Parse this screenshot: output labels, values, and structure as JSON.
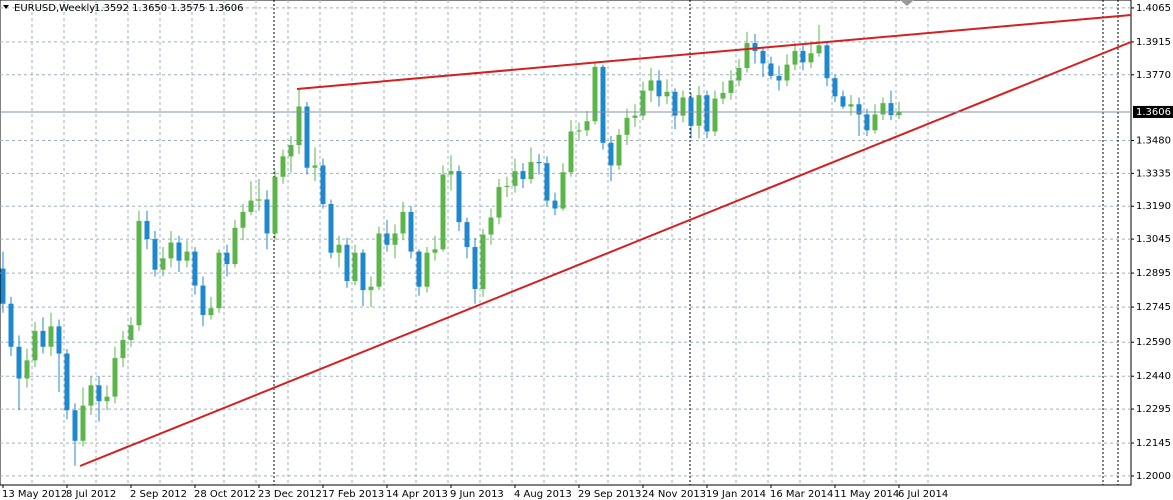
{
  "chart_data": {
    "type": "candlestick",
    "title": "EURUSD,Weekly",
    "header_ohlc": "1.3592 1.3650 1.3575 1.3606",
    "categories": [
      "13 May 2012",
      null,
      null,
      null,
      null,
      null,
      null,
      null,
      "8 Jul 2012",
      null,
      null,
      null,
      null,
      null,
      null,
      null,
      "2 Sep 2012",
      null,
      null,
      null,
      null,
      null,
      null,
      null,
      "28 Oct 2012",
      null,
      null,
      null,
      null,
      null,
      null,
      null,
      "23 Dec 2012",
      null,
      null,
      null,
      null,
      null,
      null,
      null,
      "17 Feb 2013",
      null,
      null,
      null,
      null,
      null,
      null,
      null,
      "14 Apr 2013",
      null,
      null,
      null,
      null,
      null,
      null,
      null,
      "9 Jun 2013",
      null,
      null,
      null,
      null,
      null,
      null,
      null,
      "4 Aug 2013",
      null,
      null,
      null,
      null,
      null,
      null,
      null,
      "29 Sep 2013",
      null,
      null,
      null,
      null,
      null,
      null,
      null,
      "24 Nov 2013",
      null,
      null,
      null,
      null,
      null,
      null,
      null,
      "19 Jan 2014",
      null,
      null,
      null,
      null,
      null,
      null,
      null,
      "16 Mar 2014",
      null,
      null,
      null,
      null,
      null,
      null,
      null,
      "11 May 2014",
      null,
      null,
      null,
      null,
      null,
      null,
      null,
      "6 Jul 2014"
    ],
    "open": [
      1.2915,
      1.276,
      1.257,
      1.243,
      1.251,
      1.264,
      1.257,
      1.266,
      1.254,
      1.229,
      1.2155,
      1.231,
      1.24,
      1.233,
      1.235,
      1.252,
      1.26,
      1.2665,
      1.3125,
      1.3045,
      1.291,
      1.296,
      1.303,
      1.295,
      1.299,
      1.284,
      1.271,
      1.274,
      1.2985,
      1.2935,
      1.3095,
      1.3165,
      1.3215,
      1.322,
      1.307,
      1.332,
      1.341,
      1.346,
      1.363,
      1.336,
      1.337,
      1.32,
      1.2985,
      1.302,
      1.286,
      1.2985,
      1.282,
      1.2835,
      1.307,
      1.302,
      1.307,
      1.3165,
      1.299,
      1.2835,
      1.2985,
      1.3,
      1.333,
      1.3345,
      1.312,
      1.301,
      1.2825,
      1.3065,
      1.314,
      1.3275,
      1.328,
      1.3345,
      1.331,
      1.3385,
      1.338,
      1.3215,
      1.318,
      1.334,
      1.352,
      1.3525,
      1.3565,
      1.3805,
      1.347,
      1.337,
      1.3505,
      1.358,
      1.359,
      1.37,
      1.3745,
      1.3675,
      1.3695,
      1.359,
      1.367,
      1.3545,
      1.368,
      1.352,
      1.3665,
      1.369,
      1.3745,
      1.38,
      1.391,
      1.3875,
      1.382,
      1.3765,
      1.3745,
      1.3815,
      1.3875,
      1.3825,
      1.3865,
      1.39,
      1.3755,
      1.3675,
      1.363,
      1.364,
      1.3595,
      1.3525,
      1.3595,
      1.3645,
      1.3592
    ],
    "high": [
      1.299,
      1.279,
      1.262,
      1.256,
      1.268,
      1.27,
      1.272,
      1.269,
      1.256,
      1.232,
      1.239,
      1.244,
      1.244,
      1.24,
      1.257,
      1.264,
      1.27,
      1.317,
      1.317,
      1.308,
      1.301,
      1.308,
      1.306,
      1.304,
      1.301,
      1.288,
      1.279,
      1.3,
      1.302,
      1.313,
      1.32,
      1.33,
      1.331,
      1.326,
      1.335,
      1.344,
      1.35,
      1.371,
      1.365,
      1.345,
      1.34,
      1.322,
      1.306,
      1.305,
      1.302,
      1.3,
      1.288,
      1.31,
      1.313,
      1.311,
      1.321,
      1.319,
      1.3,
      1.301,
      1.306,
      1.337,
      1.3415,
      1.337,
      1.314,
      1.305,
      1.309,
      1.318,
      1.331,
      1.332,
      1.34,
      1.338,
      1.345,
      1.342,
      1.341,
      1.325,
      1.338,
      1.357,
      1.356,
      1.361,
      1.383,
      1.3815,
      1.35,
      1.353,
      1.362,
      1.364,
      1.374,
      1.38,
      1.379,
      1.375,
      1.371,
      1.37,
      1.369,
      1.372,
      1.37,
      1.37,
      1.374,
      1.379,
      1.384,
      1.396,
      1.395,
      1.389,
      1.385,
      1.381,
      1.386,
      1.391,
      1.39,
      1.391,
      1.399,
      1.392,
      1.377,
      1.37,
      1.368,
      1.367,
      1.362,
      1.364,
      1.367,
      1.37,
      1.365
    ],
    "low": [
      1.272,
      1.253,
      1.229,
      1.239,
      1.248,
      1.254,
      1.253,
      1.237,
      1.225,
      1.2045,
      1.213,
      1.227,
      1.224,
      1.229,
      1.232,
      1.248,
      1.257,
      1.264,
      1.3,
      1.288,
      1.288,
      1.292,
      1.29,
      1.292,
      1.28,
      1.266,
      1.269,
      1.272,
      1.288,
      1.292,
      1.304,
      1.315,
      1.317,
      1.3,
      1.304,
      1.329,
      1.334,
      1.342,
      1.333,
      1.33,
      1.318,
      1.296,
      1.292,
      1.283,
      1.284,
      1.275,
      1.2745,
      1.282,
      1.299,
      1.296,
      1.304,
      1.296,
      1.2795,
      1.281,
      1.295,
      1.299,
      1.326,
      1.308,
      1.296,
      1.276,
      1.279,
      1.302,
      1.311,
      1.323,
      1.325,
      1.327,
      1.329,
      1.333,
      1.319,
      1.315,
      1.317,
      1.332,
      1.348,
      1.35,
      1.355,
      1.344,
      1.33,
      1.335,
      1.346,
      1.354,
      1.357,
      1.365,
      1.363,
      1.364,
      1.353,
      1.356,
      1.349,
      1.349,
      1.349,
      1.35,
      1.364,
      1.366,
      1.372,
      1.378,
      1.382,
      1.376,
      1.375,
      1.37,
      1.372,
      1.379,
      1.379,
      1.38,
      1.385,
      1.372,
      1.365,
      1.362,
      1.359,
      1.35,
      1.35,
      1.351,
      1.357,
      1.357,
      1.3575
    ],
    "close": [
      1.276,
      1.257,
      1.243,
      1.251,
      1.264,
      1.257,
      1.266,
      1.254,
      1.229,
      1.2155,
      1.231,
      1.24,
      1.233,
      1.235,
      1.252,
      1.26,
      1.2665,
      1.3125,
      1.3045,
      1.291,
      1.296,
      1.303,
      1.295,
      1.299,
      1.284,
      1.271,
      1.274,
      1.2985,
      1.2935,
      1.3095,
      1.3165,
      1.3215,
      1.322,
      1.307,
      1.332,
      1.341,
      1.346,
      1.363,
      1.336,
      1.337,
      1.32,
      1.2985,
      1.302,
      1.286,
      1.2985,
      1.282,
      1.2835,
      1.307,
      1.302,
      1.307,
      1.3165,
      1.299,
      1.2835,
      1.2985,
      1.3,
      1.333,
      1.3345,
      1.312,
      1.301,
      1.2825,
      1.3065,
      1.314,
      1.3275,
      1.328,
      1.3345,
      1.331,
      1.3385,
      1.338,
      1.3215,
      1.318,
      1.334,
      1.352,
      1.3525,
      1.3565,
      1.3805,
      1.347,
      1.337,
      1.3505,
      1.358,
      1.359,
      1.37,
      1.3745,
      1.3675,
      1.3695,
      1.359,
      1.367,
      1.3545,
      1.368,
      1.352,
      1.3665,
      1.369,
      1.3745,
      1.38,
      1.391,
      1.3875,
      1.382,
      1.3765,
      1.3745,
      1.3815,
      1.3875,
      1.3825,
      1.3865,
      1.39,
      1.3755,
      1.3675,
      1.363,
      1.364,
      1.3595,
      1.3525,
      1.3595,
      1.3645,
      1.3592,
      1.3606
    ],
    "up_color": "#5cb54a",
    "down_color": "#1f88cc",
    "ylim": [
      1.196,
      1.41
    ],
    "yticks": [
      {
        "value": 1.2,
        "label": "1.2000"
      },
      {
        "value": 1.2145,
        "label": "1.2145"
      },
      {
        "value": 1.2295,
        "label": "1.2295"
      },
      {
        "value": 1.244,
        "label": "1.2440"
      },
      {
        "value": 1.259,
        "label": "1.2590"
      },
      {
        "value": 1.2745,
        "label": "1.2745"
      },
      {
        "value": 1.2895,
        "label": "1.2895"
      },
      {
        "value": 1.3045,
        "label": "1.3045"
      },
      {
        "value": 1.319,
        "label": "1.3190"
      },
      {
        "value": 1.3335,
        "label": "1.3335"
      },
      {
        "value": 1.348,
        "label": "1.3480"
      },
      {
        "value": 1.377,
        "label": "1.3770"
      },
      {
        "value": 1.3915,
        "label": "1.3915"
      },
      {
        "value": 1.4065,
        "label": "1.4065"
      }
    ],
    "last_price": {
      "value": 1.3606,
      "label": "1.3606"
    },
    "grid": true
  }
}
